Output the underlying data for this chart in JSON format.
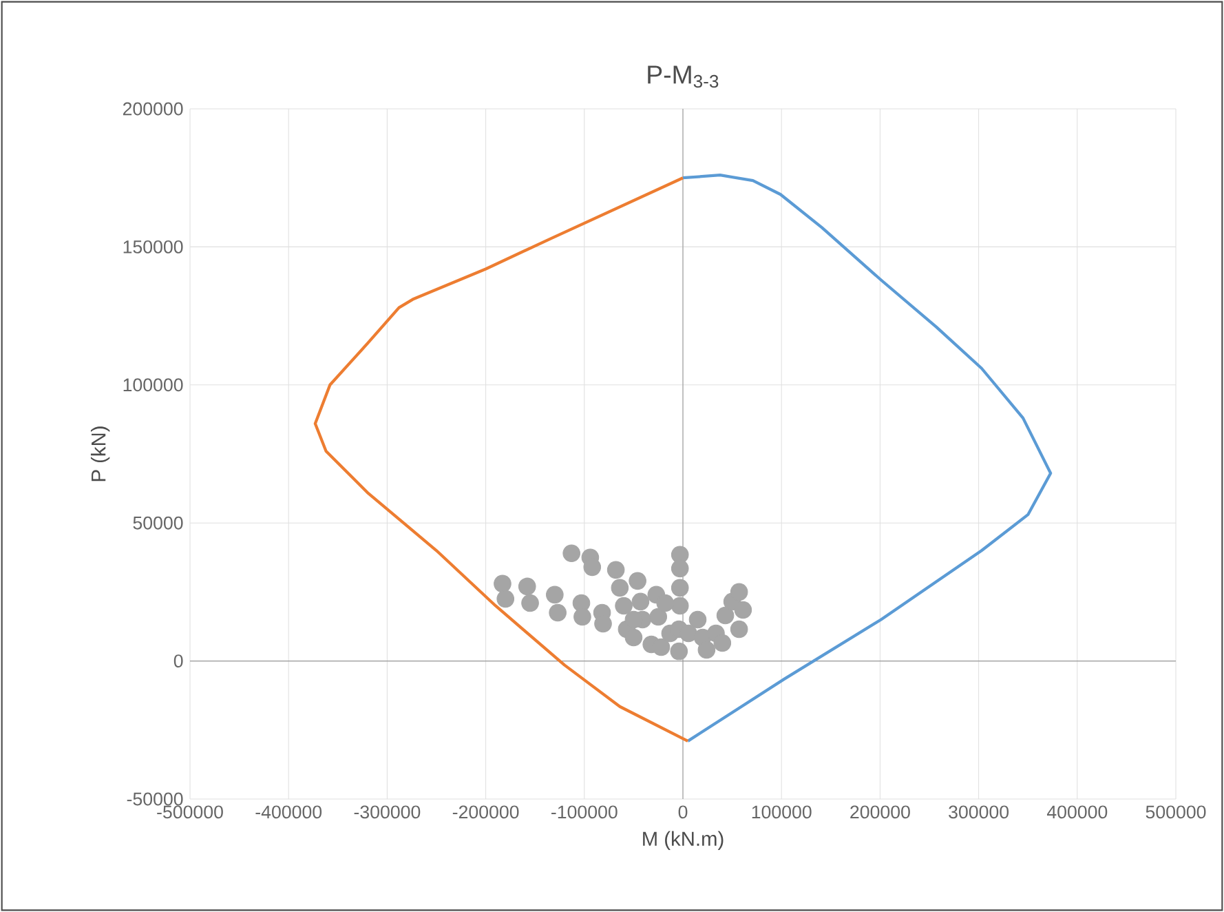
{
  "chart_data": {
    "type": "line",
    "title": "P-M$_{3-3}$",
    "xlabel": "M (kN.m)",
    "ylabel": "P (kN)",
    "xlim": [
      -500000,
      500000
    ],
    "xticks": [
      -500000,
      -400000,
      -300000,
      -200000,
      -100000,
      0,
      100000,
      200000,
      300000,
      400000,
      500000
    ],
    "ylim": [
      -50000,
      200000
    ],
    "yticks": [
      -50000,
      0,
      50000,
      100000,
      150000,
      200000
    ],
    "grid": true,
    "series": [
      {
        "color": "#5b9bd5",
        "x": [
          0,
          37700,
          71000,
          99000,
          141000,
          201000,
          257000,
          303000,
          345000,
          373000,
          350000,
          303000,
          201000,
          103000,
          5000
        ],
        "values": [
          175000,
          176000,
          174000,
          169000,
          157000,
          138000,
          121000,
          106000,
          88000,
          68000,
          53000,
          40000,
          15000,
          -6500,
          -29000
        ]
      },
      {
        "color": "#ed7d31",
        "x": [
          0,
          -134000,
          -200000,
          -274000,
          -288000,
          -320000,
          -358000,
          -373000,
          -362000,
          -320000,
          -250000,
          -190000,
          -120000,
          -64000,
          5000
        ],
        "values": [
          175000,
          153000,
          142000,
          131000,
          128000,
          115000,
          100000,
          86000,
          76000,
          61000,
          40000,
          20000,
          -1500,
          -16500,
          -29000
        ]
      },
      {
        "type": "scatter",
        "marker": "circle",
        "color": "#a5a5a5",
        "x": [
          -183000,
          -180000,
          -158000,
          -155000,
          -130000,
          -127000,
          -113000,
          -103000,
          -102000,
          -94000,
          -92000,
          -82000,
          -81000,
          -68000,
          -64000,
          -60000,
          -57000,
          -50000,
          -46000,
          -43000,
          -41000,
          -32000,
          -27000,
          -22000,
          -25000,
          -13000,
          -3000,
          -3000,
          -3000,
          -3000,
          -4000,
          -4000,
          5600,
          15000,
          20000,
          24000,
          33500,
          43000,
          50000,
          57000,
          61000,
          57000,
          40000,
          -50000,
          -18000
        ],
        "values": [
          28000,
          22500,
          27000,
          21000,
          24000,
          17500,
          39000,
          21000,
          16000,
          37500,
          34000,
          17500,
          13500,
          33000,
          26500,
          20000,
          11500,
          8500,
          29000,
          21500,
          15000,
          6000,
          24000,
          5000,
          16000,
          10000,
          38500,
          33500,
          26500,
          20000,
          11500,
          3500,
          10000,
          15000,
          8500,
          4000,
          10000,
          16500,
          21500,
          25000,
          18500,
          11500,
          6500,
          15000,
          21000
        ]
      }
    ]
  }
}
